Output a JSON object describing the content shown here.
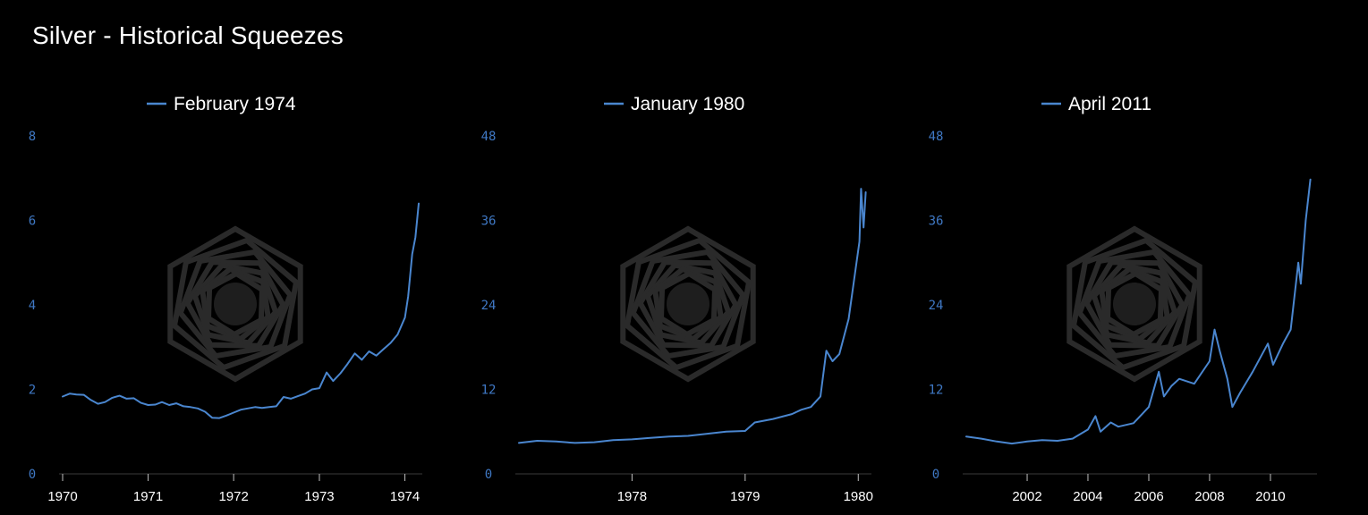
{
  "title": "Silver - Historical Squeezes",
  "colors": {
    "background": "#000000",
    "series": "#4a86cf",
    "y_tick": "#3f78c4",
    "axis": "#3a3a3a",
    "watermark": "#2a2a2a"
  },
  "chart_data": [
    {
      "type": "line",
      "legend": "February 1974",
      "legend_placement": "top-center",
      "grid": false,
      "x_type": "date",
      "xlim": [
        "1970-01-01",
        "1974-03-01"
      ],
      "ylim": [
        0,
        8
      ],
      "y_ticks": [
        0,
        2,
        4,
        6,
        8
      ],
      "x_ticks": [
        {
          "date": "1970-01-01",
          "label": "1970"
        },
        {
          "date": "1971-01-01",
          "label": "1971"
        },
        {
          "date": "1972-01-01",
          "label": "1972"
        },
        {
          "date": "1973-01-01",
          "label": "1973"
        },
        {
          "date": "1974-01-01",
          "label": "1974"
        }
      ],
      "series": [
        {
          "name": "February 1974",
          "points": [
            [
              "1970-01-01",
              1.83
            ],
            [
              "1970-02-01",
              1.9
            ],
            [
              "1970-03-01",
              1.88
            ],
            [
              "1970-04-01",
              1.87
            ],
            [
              "1970-05-01",
              1.75
            ],
            [
              "1970-06-01",
              1.66
            ],
            [
              "1970-07-01",
              1.7
            ],
            [
              "1970-08-01",
              1.8
            ],
            [
              "1970-09-01",
              1.85
            ],
            [
              "1970-10-01",
              1.78
            ],
            [
              "1970-11-01",
              1.79
            ],
            [
              "1970-12-01",
              1.68
            ],
            [
              "1971-01-01",
              1.63
            ],
            [
              "1971-02-01",
              1.64
            ],
            [
              "1971-03-01",
              1.7
            ],
            [
              "1971-04-01",
              1.63
            ],
            [
              "1971-05-01",
              1.67
            ],
            [
              "1971-06-01",
              1.6
            ],
            [
              "1971-07-01",
              1.58
            ],
            [
              "1971-08-01",
              1.55
            ],
            [
              "1971-09-01",
              1.47
            ],
            [
              "1971-10-01",
              1.33
            ],
            [
              "1971-11-01",
              1.32
            ],
            [
              "1971-12-01",
              1.38
            ],
            [
              "1972-01-01",
              1.45
            ],
            [
              "1972-02-01",
              1.52
            ],
            [
              "1972-03-01",
              1.55
            ],
            [
              "1972-04-01",
              1.58
            ],
            [
              "1972-05-01",
              1.56
            ],
            [
              "1972-06-01",
              1.58
            ],
            [
              "1972-07-01",
              1.6
            ],
            [
              "1972-08-01",
              1.82
            ],
            [
              "1972-09-01",
              1.78
            ],
            [
              "1972-10-01",
              1.84
            ],
            [
              "1972-11-01",
              1.9
            ],
            [
              "1972-12-01",
              2.0
            ],
            [
              "1973-01-01",
              2.03
            ],
            [
              "1973-02-01",
              2.4
            ],
            [
              "1973-03-01",
              2.2
            ],
            [
              "1973-04-01",
              2.38
            ],
            [
              "1973-05-01",
              2.6
            ],
            [
              "1973-06-01",
              2.85
            ],
            [
              "1973-07-01",
              2.7
            ],
            [
              "1973-08-01",
              2.9
            ],
            [
              "1973-09-01",
              2.8
            ],
            [
              "1973-10-01",
              2.95
            ],
            [
              "1973-11-01",
              3.1
            ],
            [
              "1973-12-01",
              3.3
            ],
            [
              "1974-01-01",
              3.7
            ],
            [
              "1974-01-15",
              4.2
            ],
            [
              "1974-02-01",
              5.2
            ],
            [
              "1974-02-15",
              5.6
            ],
            [
              "1974-03-01",
              6.4
            ]
          ]
        }
      ]
    },
    {
      "type": "line",
      "legend": "January 1980",
      "legend_placement": "top-center",
      "grid": false,
      "x_type": "date",
      "xlim": [
        "1977-01-01",
        "1980-02-01"
      ],
      "ylim": [
        0,
        48
      ],
      "y_ticks": [
        0,
        12,
        24,
        36,
        48
      ],
      "x_ticks": [
        {
          "date": "1978-01-01",
          "label": "1978"
        },
        {
          "date": "1979-01-01",
          "label": "1979"
        },
        {
          "date": "1980-01-01",
          "label": "1980"
        }
      ],
      "series": [
        {
          "name": "January 1980",
          "points": [
            [
              "1977-01-01",
              4.4
            ],
            [
              "1977-03-01",
              4.7
            ],
            [
              "1977-05-01",
              4.6
            ],
            [
              "1977-07-01",
              4.4
            ],
            [
              "1977-09-01",
              4.5
            ],
            [
              "1977-11-01",
              4.8
            ],
            [
              "1978-01-01",
              4.9
            ],
            [
              "1978-03-01",
              5.1
            ],
            [
              "1978-05-01",
              5.3
            ],
            [
              "1978-07-01",
              5.4
            ],
            [
              "1978-09-01",
              5.7
            ],
            [
              "1978-11-01",
              6.0
            ],
            [
              "1979-01-01",
              6.1
            ],
            [
              "1979-02-01",
              7.3
            ],
            [
              "1979-04-01",
              7.8
            ],
            [
              "1979-06-01",
              8.5
            ],
            [
              "1979-07-01",
              9.1
            ],
            [
              "1979-08-01",
              9.5
            ],
            [
              "1979-09-01",
              11.0
            ],
            [
              "1979-09-20",
              17.5
            ],
            [
              "1979-10-10",
              16.0
            ],
            [
              "1979-11-01",
              17.0
            ],
            [
              "1979-12-01",
              22.0
            ],
            [
              "1979-12-20",
              28.0
            ],
            [
              "1980-01-05",
              33.0
            ],
            [
              "1980-01-10",
              40.5
            ],
            [
              "1980-01-18",
              35.0
            ],
            [
              "1980-01-25",
              40.0
            ]
          ]
        }
      ]
    },
    {
      "type": "line",
      "legend": "April 2011",
      "legend_placement": "top-center",
      "grid": false,
      "x_type": "date",
      "xlim": [
        "2000-01-01",
        "2011-06-01"
      ],
      "ylim": [
        0,
        48
      ],
      "y_ticks": [
        0,
        12,
        24,
        36,
        48
      ],
      "x_ticks": [
        {
          "date": "2002-01-01",
          "label": "2002"
        },
        {
          "date": "2004-01-01",
          "label": "2004"
        },
        {
          "date": "2006-01-01",
          "label": "2006"
        },
        {
          "date": "2008-01-01",
          "label": "2008"
        },
        {
          "date": "2010-01-01",
          "label": "2010"
        }
      ],
      "series": [
        {
          "name": "April 2011",
          "points": [
            [
              "2000-01-01",
              5.3
            ],
            [
              "2000-07-01",
              5.0
            ],
            [
              "2001-01-01",
              4.6
            ],
            [
              "2001-07-01",
              4.3
            ],
            [
              "2002-01-01",
              4.6
            ],
            [
              "2002-07-01",
              4.8
            ],
            [
              "2003-01-01",
              4.7
            ],
            [
              "2003-07-01",
              5.0
            ],
            [
              "2004-01-01",
              6.3
            ],
            [
              "2004-04-01",
              8.2
            ],
            [
              "2004-06-01",
              6.0
            ],
            [
              "2004-10-01",
              7.3
            ],
            [
              "2005-01-01",
              6.7
            ],
            [
              "2005-07-01",
              7.2
            ],
            [
              "2006-01-01",
              9.5
            ],
            [
              "2006-05-01",
              14.5
            ],
            [
              "2006-07-01",
              11.0
            ],
            [
              "2006-10-01",
              12.5
            ],
            [
              "2007-01-01",
              13.5
            ],
            [
              "2007-07-01",
              12.8
            ],
            [
              "2008-01-01",
              16.0
            ],
            [
              "2008-03-01",
              20.5
            ],
            [
              "2008-05-01",
              17.5
            ],
            [
              "2008-08-01",
              13.5
            ],
            [
              "2008-10-01",
              9.5
            ],
            [
              "2009-01-01",
              11.5
            ],
            [
              "2009-06-01",
              14.5
            ],
            [
              "2009-12-01",
              18.5
            ],
            [
              "2010-02-01",
              15.5
            ],
            [
              "2010-06-01",
              18.5
            ],
            [
              "2010-09-01",
              20.5
            ],
            [
              "2010-12-01",
              30.0
            ],
            [
              "2011-01-01",
              27.0
            ],
            [
              "2011-03-01",
              36.0
            ],
            [
              "2011-04-25",
              41.8
            ]
          ]
        }
      ]
    }
  ]
}
